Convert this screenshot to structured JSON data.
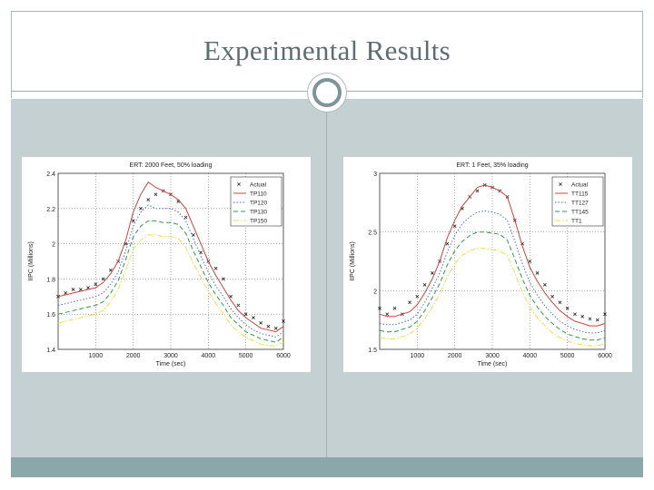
{
  "slide": {
    "title": "Experimental Results"
  },
  "chart_data": [
    {
      "type": "line",
      "title": "ERT: 2000 Feet, 50% loading",
      "xlabel": "Time (sec)",
      "ylabel": "IIPC (Millions)",
      "xlim": [
        0,
        6000
      ],
      "ylim": [
        1.4,
        2.4
      ],
      "x_ticks": [
        "1000",
        "2000",
        "3000",
        "4000",
        "5000",
        "6000"
      ],
      "y_ticks": [
        "1.4",
        "1.6",
        "1.8",
        "2",
        "2.2",
        "2.4"
      ],
      "legend_position": "top-right",
      "x": [
        0,
        200,
        400,
        600,
        800,
        1000,
        1200,
        1400,
        1600,
        1800,
        2000,
        2200,
        2400,
        2600,
        2800,
        3000,
        3200,
        3400,
        3600,
        3800,
        4000,
        4200,
        4400,
        4600,
        4800,
        5000,
        5200,
        5400,
        5600,
        5800,
        6000
      ],
      "series": [
        {
          "name": "Actual",
          "style": "markers",
          "color": "#222222",
          "values": [
            1.7,
            1.72,
            1.74,
            1.74,
            1.75,
            1.77,
            1.8,
            1.85,
            1.9,
            2.0,
            2.13,
            2.2,
            2.25,
            2.28,
            2.3,
            2.28,
            2.24,
            2.15,
            2.05,
            1.95,
            1.9,
            1.86,
            1.8,
            1.7,
            1.65,
            1.6,
            1.58,
            1.55,
            1.53,
            1.52,
            1.56
          ]
        },
        {
          "name": "TP110",
          "style": "solid",
          "color": "#d14040",
          "values": [
            1.7,
            1.71,
            1.72,
            1.73,
            1.74,
            1.75,
            1.78,
            1.83,
            1.9,
            2.02,
            2.18,
            2.28,
            2.35,
            2.32,
            2.3,
            2.28,
            2.25,
            2.2,
            2.1,
            2.0,
            1.9,
            1.82,
            1.75,
            1.68,
            1.62,
            1.58,
            1.55,
            1.52,
            1.51,
            1.5,
            1.53
          ]
        },
        {
          "name": "TP120",
          "style": "dotted",
          "color": "#4a6fc9",
          "values": [
            1.65,
            1.66,
            1.67,
            1.68,
            1.69,
            1.7,
            1.72,
            1.77,
            1.84,
            1.96,
            2.1,
            2.18,
            2.22,
            2.2,
            2.2,
            2.2,
            2.18,
            2.13,
            2.03,
            1.93,
            1.84,
            1.76,
            1.7,
            1.63,
            1.58,
            1.54,
            1.51,
            1.49,
            1.48,
            1.47,
            1.5
          ]
        },
        {
          "name": "TP130",
          "style": "dashed",
          "color": "#2f9a4a",
          "values": [
            1.6,
            1.61,
            1.62,
            1.63,
            1.64,
            1.65,
            1.67,
            1.72,
            1.79,
            1.91,
            2.04,
            2.1,
            2.13,
            2.13,
            2.12,
            2.12,
            2.11,
            2.06,
            1.96,
            1.87,
            1.78,
            1.71,
            1.65,
            1.58,
            1.54,
            1.5,
            1.48,
            1.46,
            1.45,
            1.44,
            1.47
          ]
        },
        {
          "name": "TP150",
          "style": "dash-dot",
          "color": "#e8e04a",
          "values": [
            1.55,
            1.56,
            1.57,
            1.58,
            1.59,
            1.6,
            1.62,
            1.67,
            1.74,
            1.85,
            1.97,
            2.02,
            2.05,
            2.05,
            2.04,
            2.04,
            2.03,
            1.98,
            1.89,
            1.81,
            1.73,
            1.66,
            1.6,
            1.54,
            1.5,
            1.47,
            1.45,
            1.43,
            1.42,
            1.42,
            1.44
          ]
        }
      ]
    },
    {
      "type": "line",
      "title": "ERT: 1 Feet, 35% loading",
      "xlabel": "Time (sec)",
      "ylabel": "IIPC (Millions)",
      "xlim": [
        0,
        6000
      ],
      "ylim": [
        1.5,
        3
      ],
      "x_ticks": [
        "1000",
        "2000",
        "3000",
        "4000",
        "5000",
        "6000"
      ],
      "y_ticks": [
        "1.5",
        "2",
        "2.5",
        "3"
      ],
      "legend_position": "top-right",
      "x": [
        0,
        200,
        400,
        600,
        800,
        1000,
        1200,
        1400,
        1600,
        1800,
        2000,
        2200,
        2400,
        2600,
        2800,
        3000,
        3200,
        3400,
        3600,
        3800,
        4000,
        4200,
        4400,
        4600,
        4800,
        5000,
        5200,
        5400,
        5600,
        5800,
        6000
      ],
      "series": [
        {
          "name": "Actual",
          "style": "markers",
          "color": "#222222",
          "values": [
            1.85,
            1.8,
            1.85,
            1.8,
            1.9,
            1.95,
            2.05,
            2.15,
            2.25,
            2.4,
            2.55,
            2.7,
            2.8,
            2.85,
            2.9,
            2.88,
            2.85,
            2.8,
            2.6,
            2.4,
            2.25,
            2.15,
            2.05,
            1.95,
            1.9,
            1.85,
            1.8,
            1.78,
            1.76,
            1.75,
            1.8
          ]
        },
        {
          "name": "TT115",
          "style": "solid",
          "color": "#d14040",
          "values": [
            1.8,
            1.78,
            1.78,
            1.8,
            1.82,
            1.88,
            1.98,
            2.1,
            2.25,
            2.45,
            2.6,
            2.72,
            2.8,
            2.88,
            2.9,
            2.88,
            2.85,
            2.8,
            2.6,
            2.38,
            2.2,
            2.08,
            1.98,
            1.9,
            1.83,
            1.78,
            1.74,
            1.72,
            1.7,
            1.7,
            1.72
          ]
        },
        {
          "name": "TT127",
          "style": "dotted",
          "color": "#4a6fc9",
          "values": [
            1.72,
            1.71,
            1.71,
            1.73,
            1.75,
            1.8,
            1.9,
            2.02,
            2.15,
            2.33,
            2.47,
            2.57,
            2.63,
            2.67,
            2.68,
            2.67,
            2.65,
            2.6,
            2.42,
            2.23,
            2.07,
            1.96,
            1.87,
            1.8,
            1.74,
            1.7,
            1.67,
            1.65,
            1.64,
            1.64,
            1.66
          ]
        },
        {
          "name": "TT145",
          "style": "dashed",
          "color": "#2f9a4a",
          "values": [
            1.66,
            1.65,
            1.65,
            1.67,
            1.69,
            1.74,
            1.83,
            1.94,
            2.06,
            2.22,
            2.34,
            2.42,
            2.47,
            2.5,
            2.5,
            2.49,
            2.48,
            2.43,
            2.27,
            2.1,
            1.96,
            1.86,
            1.78,
            1.72,
            1.67,
            1.63,
            1.61,
            1.59,
            1.58,
            1.58,
            1.6
          ]
        },
        {
          "name": "TT1",
          "style": "dash-dot",
          "color": "#e8e04a",
          "values": [
            1.6,
            1.59,
            1.59,
            1.61,
            1.63,
            1.68,
            1.76,
            1.86,
            1.97,
            2.12,
            2.23,
            2.3,
            2.34,
            2.36,
            2.36,
            2.35,
            2.34,
            2.3,
            2.15,
            1.99,
            1.86,
            1.77,
            1.7,
            1.64,
            1.6,
            1.57,
            1.55,
            1.54,
            1.53,
            1.53,
            1.55
          ]
        }
      ]
    }
  ]
}
